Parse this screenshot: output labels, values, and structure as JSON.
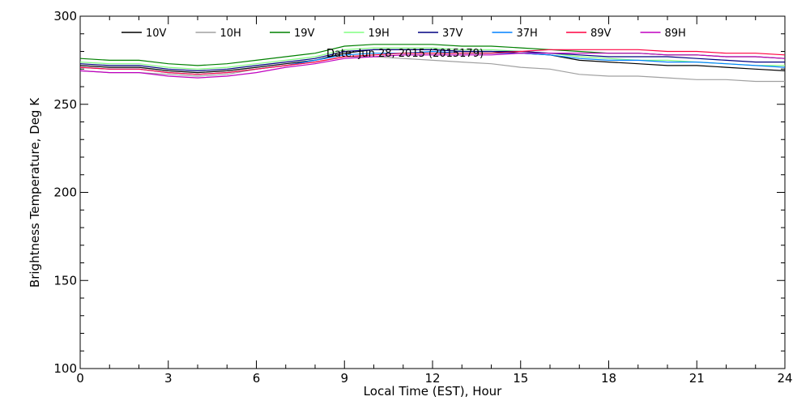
{
  "chart_data": {
    "type": "line",
    "title": "Date: Jun 28, 2015 (2015179)",
    "xlabel": "Local Time (EST), Hour",
    "ylabel": "Brightness Temperature, Deg K",
    "xlim": [
      0,
      24
    ],
    "ylim": [
      100,
      300
    ],
    "xticks": [
      0,
      3,
      6,
      9,
      12,
      15,
      18,
      21,
      24
    ],
    "yticks": [
      100,
      150,
      200,
      250,
      300
    ],
    "grid": false,
    "legend": "top",
    "x": [
      0,
      1,
      2,
      3,
      4,
      5,
      6,
      7,
      8,
      9,
      10,
      11,
      12,
      13,
      14,
      15,
      16,
      17,
      18,
      19,
      20,
      21,
      22,
      23,
      24
    ],
    "series": [
      {
        "name": "10V",
        "color": "#000000",
        "values": [
          272,
          271,
          271,
          269,
          268,
          269,
          271,
          273,
          275,
          279,
          281,
          281,
          281,
          280,
          280,
          279,
          278,
          275,
          274,
          273,
          272,
          272,
          271,
          270,
          269
        ]
      },
      {
        "name": "10H",
        "color": "#a0a0a0",
        "values": [
          269,
          268,
          268,
          267,
          266,
          267,
          270,
          272,
          274,
          277,
          277,
          276,
          275,
          274,
          273,
          271,
          270,
          267,
          266,
          266,
          265,
          264,
          264,
          263,
          263
        ]
      },
      {
        "name": "19V",
        "color": "#008000",
        "values": [
          276,
          275,
          275,
          273,
          272,
          273,
          275,
          277,
          279,
          283,
          284,
          284,
          284,
          283,
          283,
          282,
          281,
          280,
          279,
          279,
          278,
          278,
          277,
          277,
          276
        ]
      },
      {
        "name": "19H",
        "color": "#80ff80",
        "values": [
          274,
          273,
          273,
          271,
          270,
          271,
          273,
          275,
          277,
          281,
          282,
          282,
          282,
          281,
          281,
          280,
          279,
          277,
          276,
          275,
          275,
          274,
          273,
          272,
          272
        ]
      },
      {
        "name": "37V",
        "color": "#000080",
        "values": [
          273,
          272,
          272,
          270,
          269,
          270,
          272,
          274,
          276,
          280,
          281,
          281,
          281,
          280,
          280,
          280,
          279,
          278,
          277,
          277,
          277,
          276,
          275,
          274,
          274
        ]
      },
      {
        "name": "37H",
        "color": "#0080ff",
        "values": [
          271,
          270,
          270,
          268,
          267,
          268,
          270,
          272,
          275,
          278,
          279,
          279,
          280,
          279,
          279,
          279,
          278,
          276,
          275,
          275,
          274,
          274,
          273,
          272,
          271
        ]
      },
      {
        "name": "89V",
        "color": "#ff0040",
        "values": [
          271,
          270,
          270,
          268,
          267,
          268,
          270,
          272,
          274,
          277,
          278,
          279,
          279,
          279,
          279,
          280,
          281,
          281,
          281,
          281,
          280,
          280,
          279,
          279,
          278
        ]
      },
      {
        "name": "89H",
        "color": "#c000c0",
        "values": [
          269,
          268,
          268,
          266,
          265,
          266,
          268,
          271,
          273,
          276,
          277,
          278,
          278,
          278,
          278,
          279,
          279,
          279,
          279,
          279,
          278,
          278,
          277,
          277,
          276
        ]
      }
    ]
  }
}
